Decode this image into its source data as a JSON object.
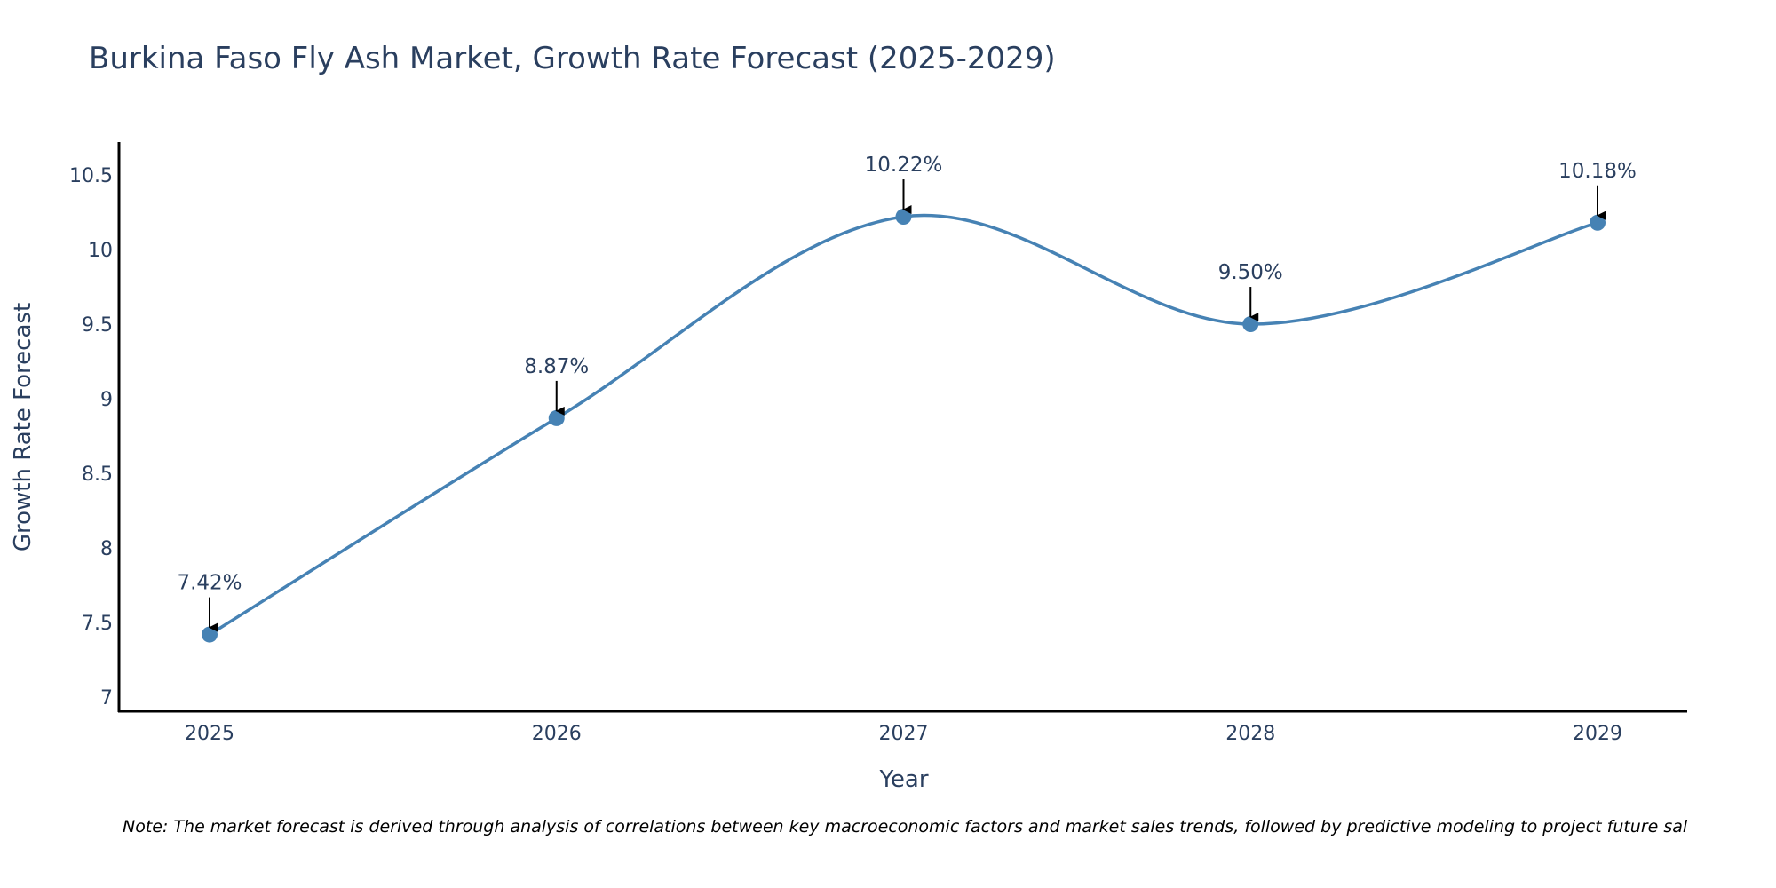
{
  "chart_title": "Burkina Faso Fly Ash Market, Growth Rate Forecast (2025-2029)",
  "note": "Note: The market forecast is derived through analysis of correlations between key macroeconomic factors and market sales trends, followed by predictive modeling to project future sal",
  "colors": {
    "line": "#4682B4",
    "text": "#2a3f5f",
    "axis": "#000000"
  },
  "chart_data": {
    "type": "line",
    "title": "Burkina Faso Fly Ash Market, Growth Rate Forecast (2025-2029)",
    "xlabel": "Year",
    "ylabel": "Growth Rate Forecast",
    "categories": [
      "2025",
      "2026",
      "2027",
      "2028",
      "2029"
    ],
    "values": [
      7.42,
      8.87,
      10.22,
      9.5,
      10.18
    ],
    "data_labels": [
      "7.42%",
      "8.87%",
      "10.22%",
      "9.50%",
      "10.18%"
    ],
    "yticks": [
      7,
      7.5,
      8,
      8.5,
      9,
      9.5,
      10,
      10.5
    ],
    "ytick_labels": [
      "7",
      "7.5",
      "8",
      "8.5",
      "9",
      "9.5",
      "10",
      "10.5"
    ],
    "ylim": [
      6.9,
      10.72
    ],
    "grid": false,
    "line_shape": "spline"
  }
}
